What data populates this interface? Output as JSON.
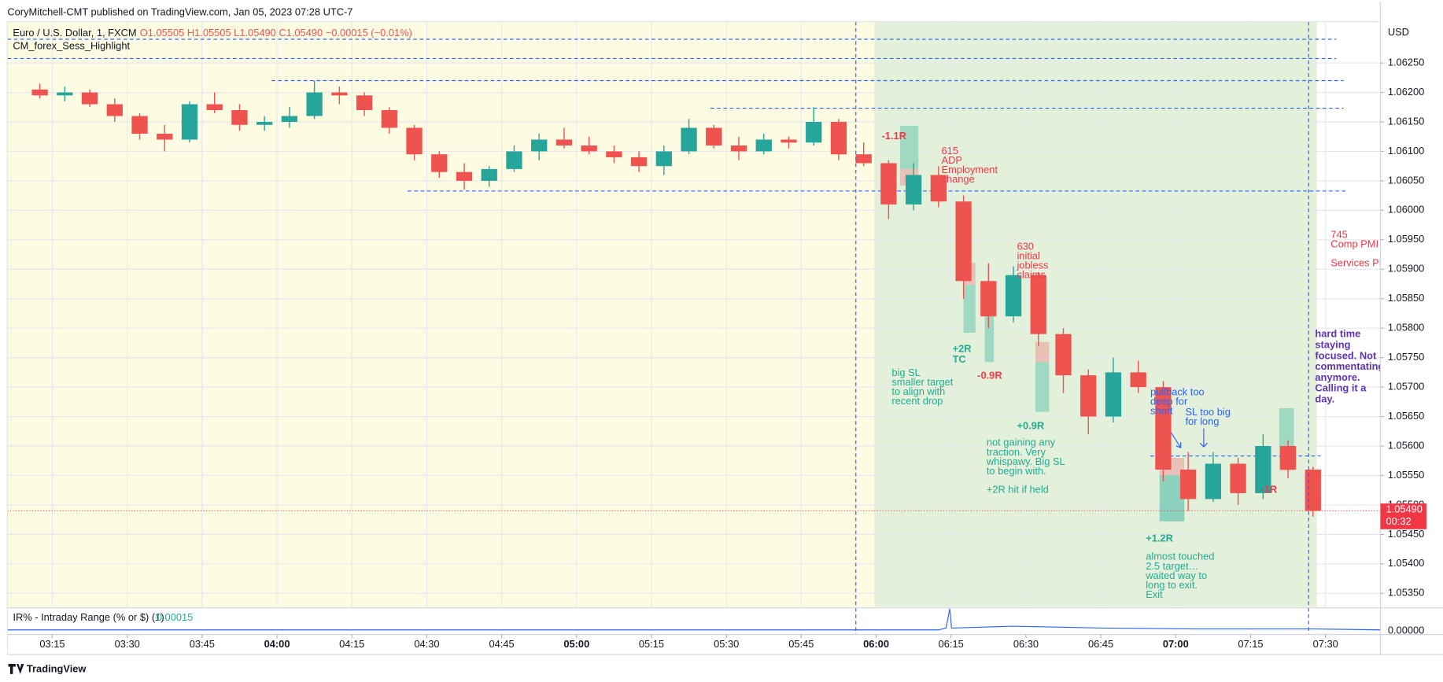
{
  "header": {
    "published": "CoryMitchell-CMT published on TradingView.com, Jan 05, 2023 07:28 UTC-7",
    "symbol": "Euro / U.S. Dollar, 1, FXCM",
    "ohlc": "O1.05505  H1.05505  L1.05490  C1.05490  −0.00015 (−0.01%)",
    "study": "CM_forex_Sess_Highlight",
    "currency": "USD",
    "indicator": "IR% - Intraday Range (% or $) (1)",
    "indicator_value": "0.00015",
    "indicator_tick": "0.00000",
    "footer": "TradingView"
  },
  "chart_data": {
    "type": "candlestick",
    "x": [
      "03:10",
      "03:15",
      "03:20",
      "03:25",
      "03:30",
      "03:35",
      "03:40",
      "03:45",
      "03:50",
      "03:55",
      "04:00",
      "04:05",
      "04:10",
      "04:15",
      "04:20",
      "04:25",
      "04:30",
      "04:35",
      "04:40",
      "04:45",
      "04:50",
      "04:55",
      "05:00",
      "05:05",
      "05:10",
      "05:15",
      "05:20",
      "05:25",
      "05:30",
      "05:35",
      "05:40",
      "05:45",
      "05:50",
      "05:55",
      "06:00",
      "06:05",
      "06:10",
      "06:15",
      "06:20",
      "06:25",
      "06:30",
      "06:35",
      "06:40",
      "06:45",
      "06:50",
      "06:55",
      "07:00",
      "07:05",
      "07:10",
      "07:15",
      "07:20",
      "07:25"
    ],
    "open": [
      1.06205,
      1.06195,
      1.062,
      1.0618,
      1.0616,
      1.0613,
      1.0612,
      1.0618,
      1.0617,
      1.06145,
      1.0615,
      1.0616,
      1.062,
      1.06195,
      1.0617,
      1.0614,
      1.06095,
      1.06065,
      1.0605,
      1.0607,
      1.061,
      1.0612,
      1.0611,
      1.061,
      1.0609,
      1.06075,
      1.061,
      1.0614,
      1.0611,
      1.061,
      1.0612,
      1.06115,
      1.0615,
      1.06095,
      1.0608,
      1.0601,
      1.0606,
      1.06015,
      1.0588,
      1.0582,
      1.0589,
      1.0579,
      1.0572,
      1.0565,
      1.05725,
      1.057,
      1.0556,
      1.0551,
      1.0557,
      1.0552,
      1.056,
      1.0556
    ],
    "high": [
      1.06215,
      1.0621,
      1.06205,
      1.0619,
      1.06165,
      1.06145,
      1.06185,
      1.062,
      1.0618,
      1.0616,
      1.06175,
      1.0622,
      1.0621,
      1.062,
      1.06175,
      1.06145,
      1.061,
      1.0608,
      1.06075,
      1.0611,
      1.0613,
      1.0614,
      1.06125,
      1.0611,
      1.061,
      1.0611,
      1.06155,
      1.06145,
      1.06125,
      1.0613,
      1.06125,
      1.06175,
      1.06155,
      1.06115,
      1.06085,
      1.0608,
      1.06075,
      1.06025,
      1.0591,
      1.05905,
      1.05895,
      1.058,
      1.0573,
      1.0575,
      1.05745,
      1.0571,
      1.0559,
      1.0559,
      1.0558,
      1.0562,
      1.0561,
      1.05565
    ],
    "low": [
      1.0619,
      1.06185,
      1.06175,
      1.0615,
      1.0612,
      1.061,
      1.06115,
      1.06165,
      1.06135,
      1.06135,
      1.0614,
      1.06155,
      1.0618,
      1.0616,
      1.0613,
      1.06085,
      1.06055,
      1.06035,
      1.0604,
      1.06065,
      1.06085,
      1.06105,
      1.06095,
      1.0608,
      1.06065,
      1.0606,
      1.06095,
      1.06105,
      1.06085,
      1.06095,
      1.06105,
      1.0611,
      1.06085,
      1.06075,
      1.05985,
      1.06,
      1.06005,
      1.0585,
      1.058,
      1.0581,
      1.0577,
      1.0569,
      1.0562,
      1.0564,
      1.0569,
      1.0554,
      1.0549,
      1.05505,
      1.055,
      1.0551,
      1.05545,
      1.0548
    ],
    "close": [
      1.06195,
      1.062,
      1.0618,
      1.0616,
      1.0613,
      1.0612,
      1.0618,
      1.0617,
      1.06145,
      1.0615,
      1.0616,
      1.062,
      1.06195,
      1.0617,
      1.0614,
      1.06095,
      1.06065,
      1.0605,
      1.0607,
      1.061,
      1.0612,
      1.0611,
      1.061,
      1.0609,
      1.06075,
      1.061,
      1.0614,
      1.0611,
      1.061,
      1.0612,
      1.06115,
      1.0615,
      1.06095,
      1.0608,
      1.0601,
      1.0606,
      1.06015,
      1.0588,
      1.0582,
      1.0589,
      1.0579,
      1.0572,
      1.0565,
      1.05725,
      1.057,
      1.0556,
      1.0551,
      1.0557,
      1.0552,
      1.056,
      1.0556,
      1.0549
    ],
    "up_color": "#26a69a",
    "down_color": "#ef5350",
    "xlim": [
      "03:06",
      "07:41"
    ],
    "xticks": [
      "03:15",
      "03:30",
      "03:45",
      "04:00",
      "04:15",
      "04:30",
      "04:45",
      "05:00",
      "05:15",
      "05:30",
      "05:45",
      "06:00",
      "06:15",
      "06:30",
      "06:45",
      "07:00",
      "07:15",
      "07:30"
    ],
    "ylim": [
      1.05327,
      1.0632
    ],
    "yticks": [
      {
        "value": 1.0625,
        "label": "1.06250"
      },
      {
        "value": 1.062,
        "label": "1.06200"
      },
      {
        "value": 1.0615,
        "label": "1.06150"
      },
      {
        "value": 1.061,
        "label": "1.06100"
      },
      {
        "value": 1.0605,
        "label": "1.06050"
      },
      {
        "value": 1.06,
        "label": "1.06000"
      },
      {
        "value": 1.0595,
        "label": "1.05950"
      },
      {
        "value": 1.059,
        "label": "1.05900"
      },
      {
        "value": 1.0585,
        "label": "1.05850"
      },
      {
        "value": 1.058,
        "label": "1.05800"
      },
      {
        "value": 1.0575,
        "label": "1.05750"
      },
      {
        "value": 1.057,
        "label": "1.05700"
      },
      {
        "value": 1.0565,
        "label": "1.05650"
      },
      {
        "value": 1.056,
        "label": "1.05600"
      },
      {
        "value": 1.0555,
        "label": "1.05550"
      },
      {
        "value": 1.055,
        "label": "1.05500"
      },
      {
        "value": 1.0545,
        "label": "1.05450"
      },
      {
        "value": 1.054,
        "label": "1.05400"
      },
      {
        "value": 1.0535,
        "label": "1.05350"
      }
    ],
    "grid": true,
    "last_price": 1.0549,
    "last_price_label": "1.05490",
    "countdown": "00:32",
    "annotations": [
      [
        "-1.1R"
      ],
      [
        "615",
        "ADP",
        "Employment",
        "change"
      ],
      [
        "630",
        "initial",
        "jobless",
        "claims"
      ],
      [
        "745",
        "Comp PMI"
      ],
      [
        "Services PMI"
      ],
      [
        "+2R",
        "TC"
      ],
      [
        "-0.9R"
      ],
      [
        "big SL",
        "smaller target",
        "to align with",
        "recent drop"
      ],
      [
        "+0.9R"
      ],
      [
        "not gaining any",
        "traction. Very",
        "whispawy. Big SL",
        "to begin with."
      ],
      [
        "+2R hit if held"
      ],
      [
        "pullback too",
        "deep for",
        "short"
      ],
      [
        "SL too big",
        "for long"
      ],
      [
        "+1.2R"
      ],
      [
        "almost touched",
        "2.5 target…",
        "waited way to",
        "long to exit.",
        "Exit"
      ],
      [
        "-1R"
      ],
      [
        "hard time",
        "staying",
        "focused. Not",
        "commentating",
        "anymore.",
        "Calling it a",
        "day."
      ]
    ]
  }
}
